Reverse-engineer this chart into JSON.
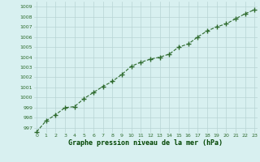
{
  "x": [
    0,
    1,
    2,
    3,
    4,
    5,
    6,
    7,
    8,
    9,
    10,
    11,
    12,
    13,
    14,
    15,
    16,
    17,
    18,
    19,
    20,
    21,
    22,
    23
  ],
  "y": [
    996.6,
    997.7,
    998.3,
    999.0,
    999.1,
    999.9,
    1000.5,
    1001.1,
    1001.6,
    1002.3,
    1003.1,
    1003.5,
    1003.8,
    1004.0,
    1004.3,
    1005.0,
    1005.3,
    1006.0,
    1006.6,
    1007.0,
    1007.3,
    1007.8,
    1008.3,
    1008.7
  ],
  "line_color": "#2d6a2d",
  "marker": "+",
  "bg_color": "#d8f0f0",
  "grid_color": "#b8d4d4",
  "xlabel": "Graphe pression niveau de la mer (hPa)",
  "xlabel_color": "#004400",
  "tick_color": "#2d6a2d",
  "ylim": [
    996.5,
    1009.5
  ],
  "yticks": [
    997,
    998,
    999,
    1000,
    1001,
    1002,
    1003,
    1004,
    1005,
    1006,
    1007,
    1008,
    1009
  ],
  "xticks": [
    0,
    1,
    2,
    3,
    4,
    5,
    6,
    7,
    8,
    9,
    10,
    11,
    12,
    13,
    14,
    15,
    16,
    17,
    18,
    19,
    20,
    21,
    22,
    23
  ],
  "linewidth": 0.8,
  "markersize": 4
}
